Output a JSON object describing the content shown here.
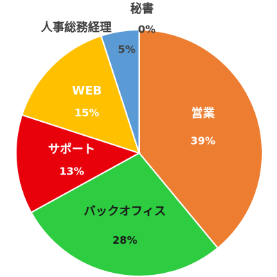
{
  "chart_data": {
    "type": "pie",
    "title": "",
    "slices": [
      {
        "label": "営業",
        "value": 39,
        "value_label": "39%",
        "color": "#ED7D31"
      },
      {
        "label": "バックオフィス",
        "value": 28,
        "value_label": "28%",
        "color": "#2ECC40"
      },
      {
        "label": "サポート",
        "value": 13,
        "value_label": "13%",
        "color": "#E8000B"
      },
      {
        "label": "WEB",
        "value": 15,
        "value_label": "15%",
        "color": "#FFC000"
      },
      {
        "label": "人事総務経理",
        "value": 5,
        "value_label": "5%",
        "color": "#5B9BD5"
      },
      {
        "label": "秘書",
        "value": 0,
        "value_label": "0%",
        "color": "#A5A5A5"
      }
    ],
    "start_angle": "12 o'clock",
    "direction": "clockwise",
    "legend": "none"
  }
}
